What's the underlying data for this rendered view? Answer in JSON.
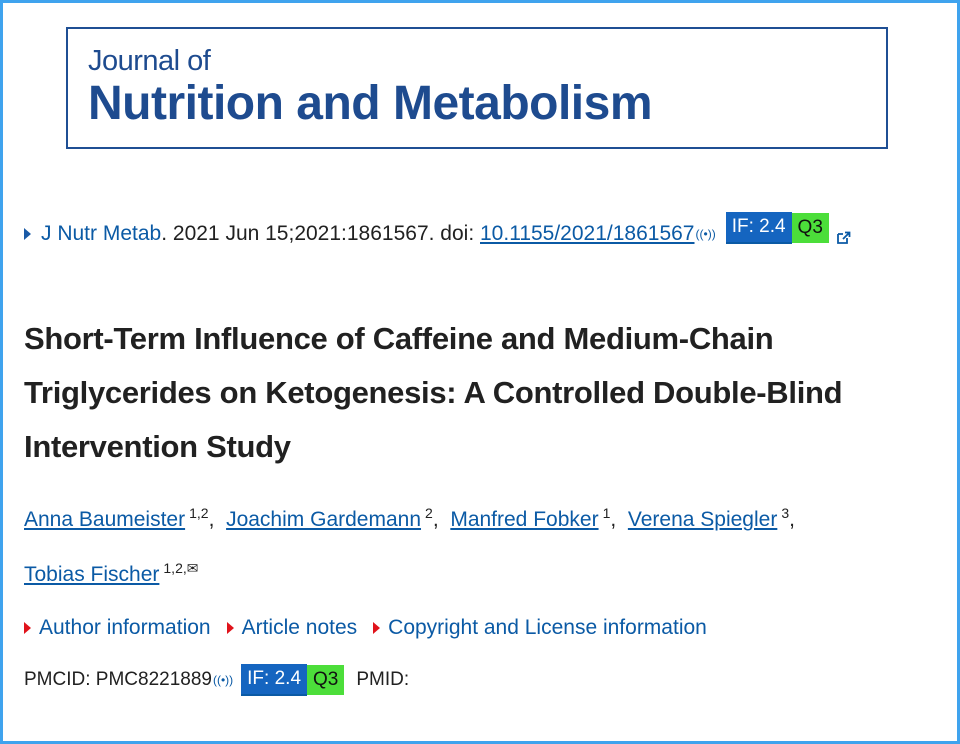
{
  "journal": {
    "line1": "Journal of",
    "line2": "Nutrition and Metabolism"
  },
  "citation": {
    "journal_abbrev": "J Nutr Metab",
    "details": ". 2021 Jun 15;2021:1861567. doi: ",
    "doi": "10.1155/2021/1861567",
    "doi_icon": "((•))",
    "impact_factor": "IF: 2.4",
    "quartile": "Q3"
  },
  "article": {
    "title": "Short-Term Influence of Caffeine and Medium-Chain Triglycerides on Ketogenesis: A Controlled Double-Blind Intervention Study"
  },
  "authors": [
    {
      "name": "Anna Baumeister",
      "affil": "1,2",
      "sep": ", "
    },
    {
      "name": "Joachim Gardemann",
      "affil": "2",
      "sep": ", "
    },
    {
      "name": "Manfred Fobker",
      "affil": "1",
      "sep": ", "
    },
    {
      "name": "Verena Spiegler",
      "affil": "3",
      "sep": ","
    },
    {
      "name": "Tobias Fischer",
      "affil": "1,2,✉",
      "sep": ""
    }
  ],
  "expanders": {
    "author_info": "Author information",
    "article_notes": "Article notes",
    "copyright": "Copyright and License information"
  },
  "ids": {
    "pmcid_label": "PMCID: PMC8221889",
    "pmcid_icon": "((•))",
    "impact_factor": "IF: 2.4",
    "quartile": "Q3",
    "pmid_label": "PMID:"
  },
  "colors": {
    "link": "#0b5aa5",
    "if_badge": "#1565c0",
    "quartile_badge": "#4cde3a",
    "frame": "#3fa3ee"
  }
}
